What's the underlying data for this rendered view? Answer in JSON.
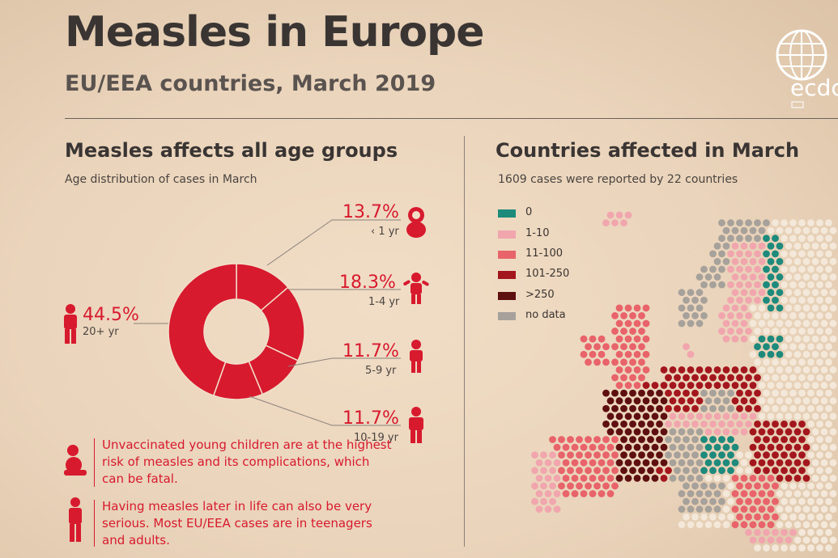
{
  "header": {
    "title": "Measles in Europe",
    "subtitle": "EU/EEA countries, March 2019"
  },
  "logo": {
    "wordmark": "ecdc"
  },
  "colors": {
    "red": "#d71a2e",
    "teal": "#1d8a7c",
    "pink": "#f1a6ae",
    "salmon": "#e8636a",
    "dark_red": "#a3161d",
    "darkest_red": "#5e0f10",
    "grey": "#a7a19b",
    "no_case": "#f3e8d9"
  },
  "left": {
    "heading": "Measles affects all age groups",
    "subheading": "Age distribution of cases in March",
    "risk_notes": [
      {
        "icon": "baby-sitting-icon",
        "text": "Unvaccinated young children are at the highest risk of measles and its complications, which can be fatal."
      },
      {
        "icon": "adult-silhouette-icon",
        "text": "Having measles later in life can also be very serious. Most EU/EEA cases are in teenagers and adults."
      }
    ]
  },
  "right": {
    "heading": "Countries affected in March",
    "subheading": "1609 cases were reported by 22 countries",
    "legend": [
      {
        "label": "0",
        "color": "#1d8a7c"
      },
      {
        "label": "1-10",
        "color": "#f1a6ae"
      },
      {
        "label": "11-100",
        "color": "#e8636a"
      },
      {
        "label": "101-250",
        "color": "#a3161d"
      },
      {
        "label": ">250",
        "color": "#5e0f10"
      },
      {
        "label": "no data",
        "color": "#a7a19b"
      }
    ]
  },
  "chart_data": {
    "type": "pie",
    "variant": "donut",
    "categories": [
      "< 1 yr",
      "1-4 yr",
      "5-9 yr",
      "10-19 yr",
      "20+ yr"
    ],
    "display_labels": [
      "‹ 1 yr",
      "1-4 yr",
      "5-9 yr",
      "10-19 yr",
      "20+ yr"
    ],
    "values": [
      13.7,
      18.3,
      11.7,
      11.7,
      44.5
    ],
    "value_labels": [
      "13.7%",
      "18.3%",
      "11.7%",
      "11.7%",
      "44.5%"
    ],
    "unit": "%",
    "title": "Age distribution of cases in March"
  }
}
